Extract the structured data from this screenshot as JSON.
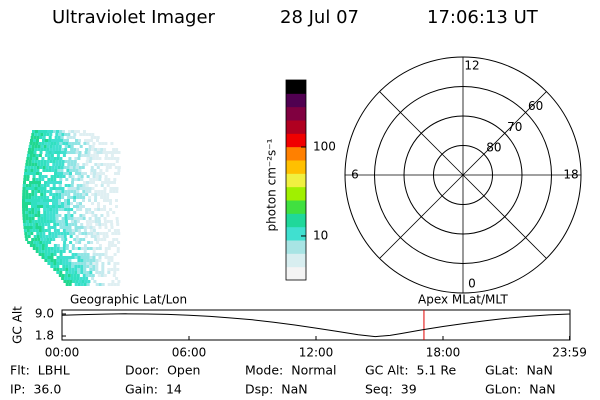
{
  "header": {
    "title": "Ultraviolet Imager",
    "date": "28 Jul 07",
    "time": "17:06:13 UT"
  },
  "colorbar": {
    "label": "photon cm⁻²s⁻¹",
    "scale": "log",
    "lim": [
      3.2,
      566
    ],
    "ticks": [
      10,
      100
    ],
    "colors": [
      "#f4f4f4",
      "#d8eef0",
      "#a8e4e4",
      "#40e0d0",
      "#20d89a",
      "#40e040",
      "#a0f000",
      "#f0f040",
      "#ffc000",
      "#ff8000",
      "#f00000",
      "#b00020",
      "#800040",
      "#500050",
      "#000000"
    ]
  },
  "polar": {
    "rlim": [
      90,
      50
    ],
    "rticks": [
      80,
      70,
      60
    ],
    "theta_ticks": [
      12,
      18,
      6,
      0
    ]
  },
  "chart_data": {
    "type": "line",
    "y_label": "GC Alt",
    "annotations": [
      "Geographic Lat/Lon",
      "Apex MLat/MLT"
    ],
    "x": [
      0,
      1,
      2,
      3,
      4,
      5,
      6,
      7,
      8,
      9,
      10,
      11,
      12,
      13,
      14,
      14.8,
      15.5,
      16,
      17,
      18,
      19,
      20,
      21,
      22,
      23,
      24
    ],
    "series": [
      {
        "color": "#000000",
        "values": [
          8.6,
          8.8,
          8.95,
          9.05,
          9.0,
          8.85,
          8.6,
          8.2,
          7.7,
          7.1,
          6.3,
          5.4,
          4.4,
          3.3,
          2.2,
          1.6,
          2.0,
          2.6,
          3.8,
          4.9,
          5.9,
          6.8,
          7.6,
          8.2,
          8.7,
          9.0
        ]
      }
    ],
    "markers": [
      {
        "x": 17.1,
        "color": "#e00000"
      }
    ],
    "xlim": [
      0,
      24
    ],
    "xticks": [
      {
        "value": 0,
        "label": "00:00"
      },
      {
        "value": 6,
        "label": "06:00"
      },
      {
        "value": 12,
        "label": "12:00"
      },
      {
        "value": 18,
        "label": "18:00"
      },
      {
        "value": 23.98,
        "label": "23:59"
      }
    ],
    "ylim": [
      0.5,
      10.3
    ],
    "yticks": [
      {
        "value": 1.8,
        "label": "1.8"
      },
      {
        "value": 9.0,
        "label": "9.0"
      }
    ]
  },
  "info": {
    "rows": [
      [
        {
          "label": "Flt:",
          "value": "LBHL"
        },
        {
          "label": "Door:",
          "value": "Open"
        },
        {
          "label": "Mode:",
          "value": "Normal"
        },
        {
          "label": "GC Alt:",
          "value": "5.1 Re"
        },
        {
          "label": "GLat:",
          "value": "NaN"
        }
      ],
      [
        {
          "label": "IP:",
          "value": "36.0"
        },
        {
          "label": "Gain:",
          "value": "14"
        },
        {
          "label": "Dsp:",
          "value": "NaN"
        },
        {
          "label": "Seq:",
          "value": "39"
        },
        {
          "label": "GLon:",
          "value": "NaN"
        }
      ]
    ]
  }
}
